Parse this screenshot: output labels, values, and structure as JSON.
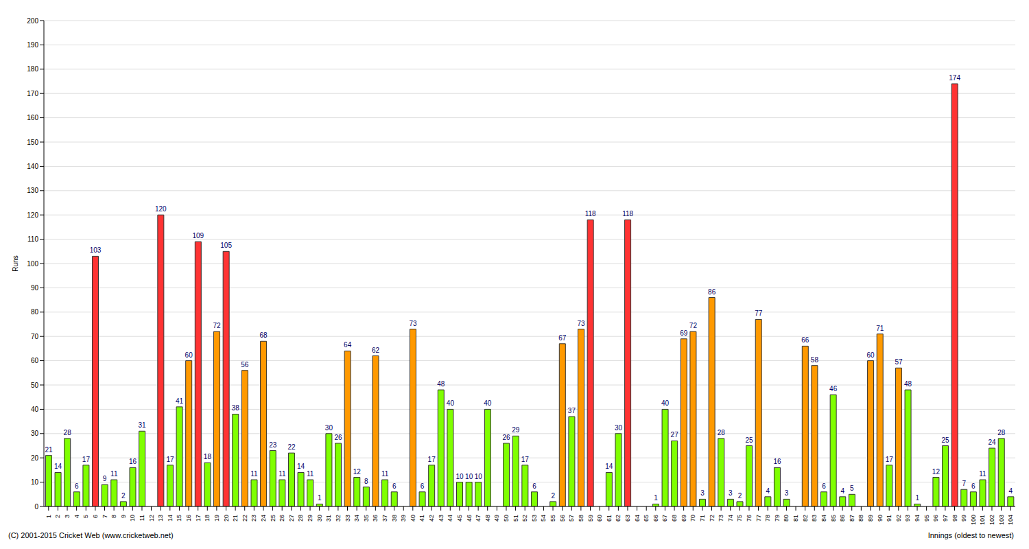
{
  "chart_data": {
    "type": "bar",
    "x_label": "Innings (oldest to newest)",
    "y_label": "Runs",
    "annotations": [
      "(C) 2001-2015 Cricket Web (www.cricketweb.net)"
    ],
    "categories": [
      "1",
      "2",
      "3",
      "4",
      "5",
      "6",
      "7",
      "8",
      "9",
      "10",
      "11",
      "12",
      "13",
      "14",
      "15",
      "16",
      "17",
      "18",
      "19",
      "20",
      "21",
      "22",
      "23",
      "24",
      "25",
      "26",
      "27",
      "28",
      "29",
      "30",
      "31",
      "32",
      "33",
      "34",
      "35",
      "36",
      "37",
      "38",
      "39",
      "40",
      "41",
      "42",
      "43",
      "44",
      "45",
      "46",
      "47",
      "48",
      "49",
      "50",
      "51",
      "52",
      "53",
      "54",
      "55",
      "56",
      "57",
      "58",
      "59",
      "60",
      "61",
      "62",
      "63",
      "64",
      "65",
      "66",
      "67",
      "68",
      "69",
      "70",
      "71",
      "72",
      "73",
      "74",
      "75",
      "76",
      "77",
      "78",
      "79",
      "80",
      "81",
      "82",
      "83",
      "84",
      "85",
      "86",
      "87",
      "88",
      "89",
      "90",
      "91",
      "92",
      "93",
      "94",
      "95",
      "96",
      "97",
      "98",
      "99",
      "100",
      "101",
      "102",
      "103",
      "104"
    ],
    "values": [
      21,
      14,
      28,
      6,
      17,
      103,
      9,
      11,
      2,
      16,
      31,
      0,
      120,
      17,
      41,
      60,
      109,
      18,
      72,
      105,
      38,
      56,
      11,
      68,
      23,
      11,
      22,
      14,
      11,
      1,
      30,
      26,
      64,
      12,
      8,
      62,
      11,
      6,
      0,
      73,
      6,
      17,
      48,
      40,
      10,
      10,
      10,
      40,
      0,
      26,
      29,
      17,
      6,
      0,
      2,
      67,
      37,
      73,
      118,
      0,
      14,
      30,
      118,
      0,
      0,
      1,
      40,
      27,
      69,
      72,
      3,
      86,
      28,
      3,
      2,
      25,
      77,
      4,
      16,
      3,
      0,
      66,
      58,
      6,
      46,
      4,
      5,
      0,
      60,
      71,
      17,
      57,
      48,
      1,
      0,
      12,
      25,
      174,
      7,
      6,
      11,
      24,
      28,
      4
    ],
    "colors": [
      "#7fff00",
      "#7fff00",
      "#7fff00",
      "#7fff00",
      "#7fff00",
      "#ff3333",
      "#7fff00",
      "#7fff00",
      "#7fff00",
      "#7fff00",
      "#7fff00",
      "#7fff00",
      "#ff3333",
      "#7fff00",
      "#7fff00",
      "#ff9900",
      "#ff3333",
      "#7fff00",
      "#ff9900",
      "#ff3333",
      "#7fff00",
      "#ff9900",
      "#7fff00",
      "#ff9900",
      "#7fff00",
      "#7fff00",
      "#7fff00",
      "#7fff00",
      "#7fff00",
      "#7fff00",
      "#7fff00",
      "#7fff00",
      "#ff9900",
      "#7fff00",
      "#7fff00",
      "#ff9900",
      "#7fff00",
      "#7fff00",
      "#7fff00",
      "#ff9900",
      "#7fff00",
      "#7fff00",
      "#7fff00",
      "#7fff00",
      "#7fff00",
      "#7fff00",
      "#7fff00",
      "#7fff00",
      "#7fff00",
      "#7fff00",
      "#7fff00",
      "#7fff00",
      "#7fff00",
      "#7fff00",
      "#7fff00",
      "#ff9900",
      "#7fff00",
      "#ff9900",
      "#ff3333",
      "#7fff00",
      "#7fff00",
      "#7fff00",
      "#ff3333",
      "#7fff00",
      "#7fff00",
      "#7fff00",
      "#7fff00",
      "#7fff00",
      "#ff9900",
      "#ff9900",
      "#7fff00",
      "#ff9900",
      "#7fff00",
      "#7fff00",
      "#7fff00",
      "#7fff00",
      "#ff9900",
      "#7fff00",
      "#7fff00",
      "#7fff00",
      "#7fff00",
      "#ff9900",
      "#ff9900",
      "#7fff00",
      "#7fff00",
      "#7fff00",
      "#7fff00",
      "#7fff00",
      "#ff9900",
      "#ff9900",
      "#7fff00",
      "#ff9900",
      "#7fff00",
      "#7fff00",
      "#7fff00",
      "#7fff00",
      "#7fff00",
      "#ff3333",
      "#7fff00",
      "#7fff00",
      "#7fff00",
      "#7fff00",
      "#7fff00",
      "#7fff00"
    ],
    "ylim": [
      0,
      200
    ],
    "yticks": [
      0,
      10,
      20,
      30,
      40,
      50,
      60,
      70,
      80,
      90,
      100,
      110,
      120,
      130,
      140,
      150,
      160,
      170,
      180,
      190,
      200
    ],
    "grid": true,
    "data_labels": true
  }
}
